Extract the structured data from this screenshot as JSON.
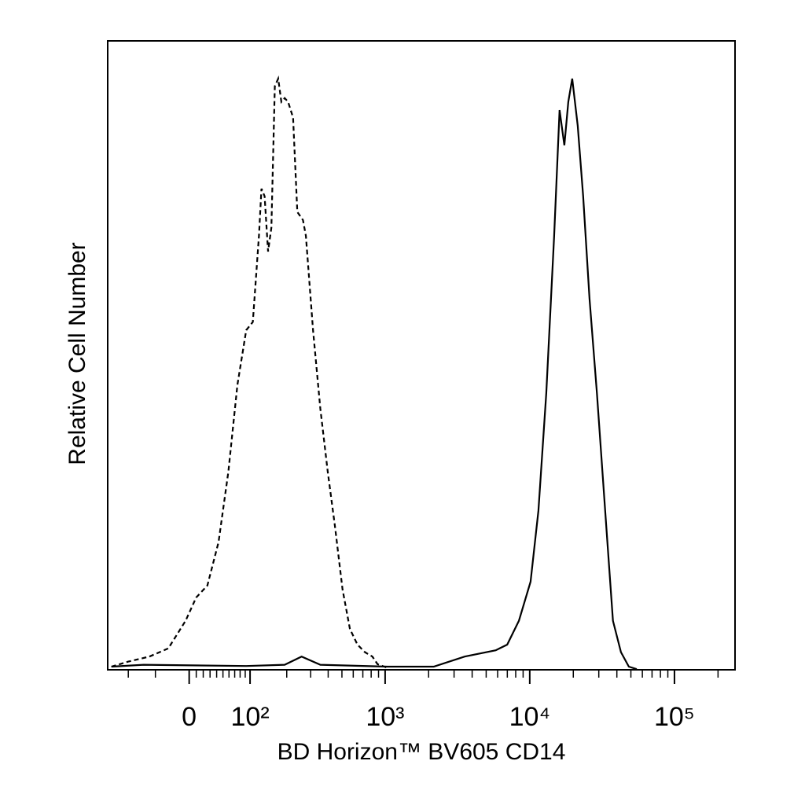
{
  "chart_data": {
    "type": "line",
    "xlabel": "BD Horizon™ BV605 CD14",
    "ylabel": "Relative Cell Number",
    "xscale": "biexponential",
    "xlim": [
      -150,
      262144
    ],
    "ylim": [
      0,
      100
    ],
    "xticks": [
      {
        "value": 0,
        "label": "0"
      },
      {
        "value": 100,
        "label": "10²"
      },
      {
        "value": 1000,
        "label": "10³"
      },
      {
        "value": 10000,
        "label": "10⁴"
      },
      {
        "value": 100000,
        "label": "10⁵"
      }
    ],
    "xminorticks": [
      -100,
      -50,
      10,
      20,
      30,
      40,
      50,
      60,
      70,
      80,
      90,
      200,
      300,
      400,
      500,
      600,
      700,
      800,
      900,
      2000,
      3000,
      4000,
      5000,
      6000,
      7000,
      8000,
      9000,
      20000,
      30000,
      40000,
      50000,
      60000,
      70000,
      80000,
      90000,
      200000
    ],
    "series": [
      {
        "color": "#000000",
        "dashed": true,
        "x": [
          -140,
          -100,
          -60,
          -30,
          -5,
          10,
          26,
          43,
          59,
          75,
          92,
          106,
          120,
          126,
          134,
          143,
          152,
          162,
          172,
          182,
          193,
          205,
          223,
          240,
          264,
          277,
          312,
          352,
          397,
          447,
          505,
          569,
          642,
          724,
          816,
          885,
          1040
        ],
        "values": [
          0.5,
          1.3,
          2.1,
          3.4,
          7.8,
          11.5,
          13.4,
          20.3,
          31.5,
          45.3,
          54,
          55.3,
          69,
          76.5,
          75.3,
          66.5,
          70.3,
          92.8,
          94,
          90.3,
          90.9,
          90.3,
          87.8,
          72.8,
          71.5,
          69,
          54,
          41.5,
          31.5,
          22.8,
          12.8,
          6.5,
          4,
          2.8,
          2.1,
          0.9,
          0.3
        ]
      },
      {
        "color": "#000000",
        "dashed": false,
        "x": [
          -140,
          -70,
          92,
          193,
          258,
          352,
          1040,
          2170,
          3550,
          5820,
          6990,
          8420,
          10130,
          11480,
          13010,
          14740,
          16080,
          17340,
          18480,
          19660,
          21450,
          23400,
          25900,
          29100,
          33200,
          37600,
          42700,
          48400,
          54900
        ],
        "values": [
          0.5,
          0.8,
          0.6,
          0.8,
          2.1,
          0.8,
          0.5,
          0.5,
          2.1,
          3.1,
          4,
          7.8,
          14,
          25.3,
          44,
          69,
          89,
          83.4,
          90.3,
          94,
          86.5,
          75.3,
          59,
          44,
          25.3,
          7.8,
          2.8,
          0.5,
          0.1
        ]
      }
    ]
  }
}
